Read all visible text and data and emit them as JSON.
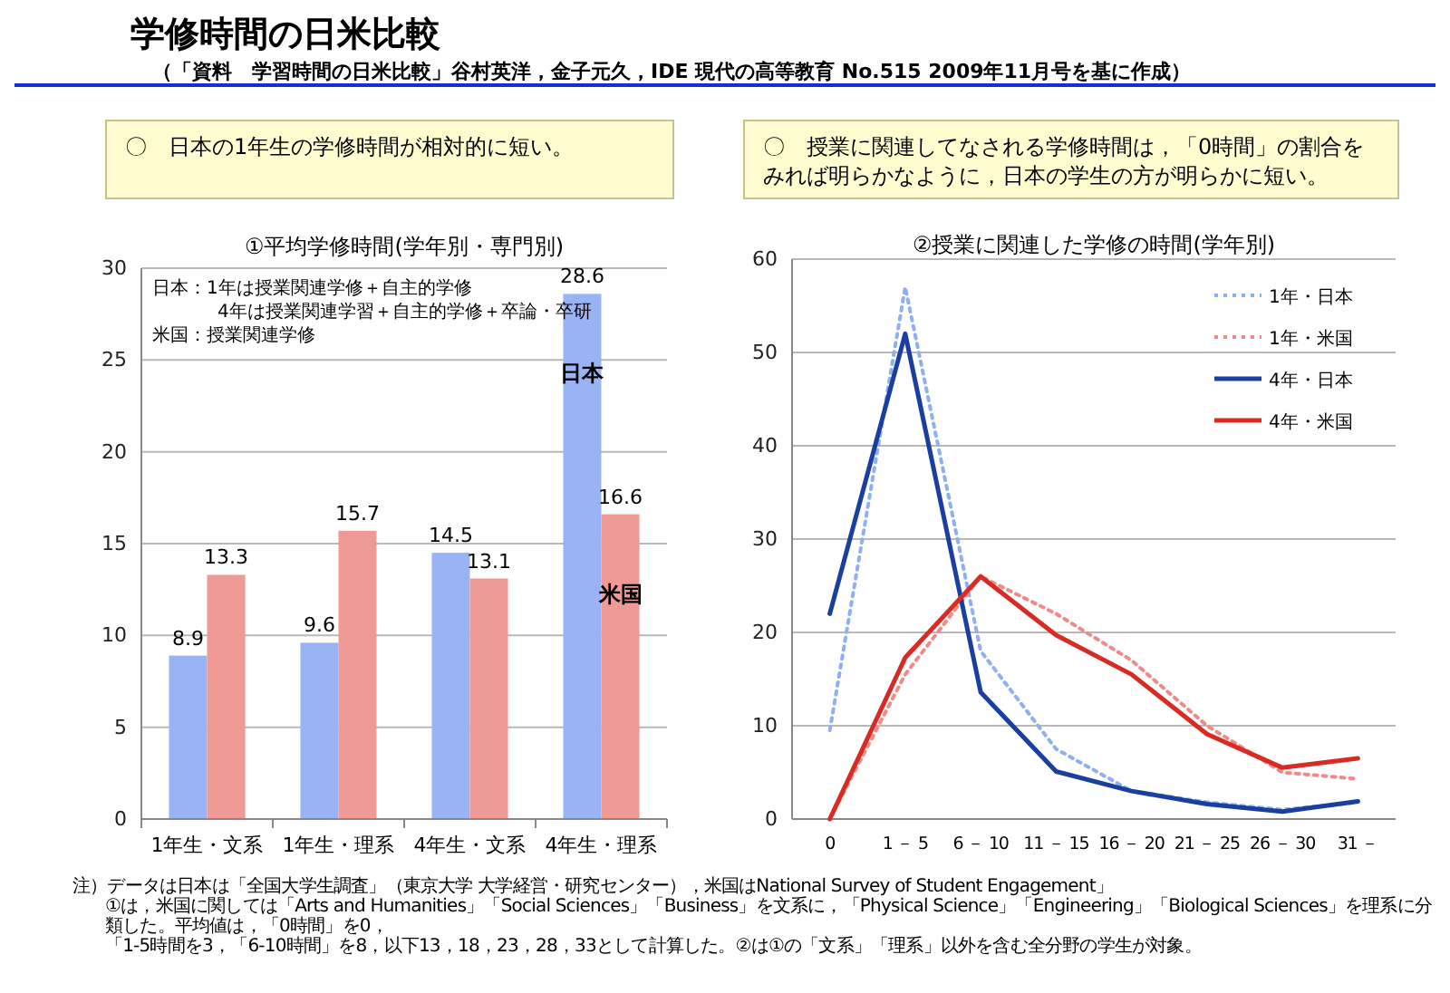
{
  "chart_data": [
    {
      "type": "bar",
      "title": "①平均学修時間(学年別・専門別)",
      "categories": [
        "1年生・文系",
        "1年生・理系",
        "4年生・文系",
        "4年生・理系"
      ],
      "series": [
        {
          "name": "日本",
          "color": "#99b3f5",
          "values": [
            8.9,
            9.6,
            14.5,
            28.6
          ]
        },
        {
          "name": "米国",
          "color": "#f09a96",
          "values": [
            13.3,
            15.7,
            13.1,
            16.6
          ]
        }
      ],
      "ylim": [
        0,
        30
      ],
      "yticks": [
        0,
        5,
        10,
        15,
        20,
        25,
        30
      ],
      "grid": "y",
      "data_labels": true,
      "annotations": [
        "学修時間の日米比較",
        "（「資料　学習時間の日米比較」谷村英洋，金子元久，IDE 現代の高等教育 No.515 2009年11月号を基に作成）",
        "〇　日本の1年生の学修時間が相対的に短い。",
        "日本：1年は授業関連学修＋自主的学修",
        "4年は授業関連学習＋自主的学修＋卒論・卒研",
        "米国：授業関連学修"
      ]
    },
    {
      "type": "line",
      "title": "②授業に関連した学修の時間(学年別)",
      "categories": [
        "0",
        "1 － 5",
        "6 － 10",
        "11 － 15",
        "16 － 20",
        "21 － 25",
        "26 － 30",
        "31 －"
      ],
      "series": [
        {
          "name": "1年・日本",
          "color": "#8fb0f0",
          "line_style": "dotted",
          "values": [
            9.5,
            57,
            18,
            7.5,
            3,
            1.8,
            1,
            1.8
          ]
        },
        {
          "name": "1年・米国",
          "color": "#f08a88",
          "line_style": "dotted",
          "values": [
            0,
            15.5,
            26,
            22,
            17,
            10,
            5,
            4.3
          ]
        },
        {
          "name": "4年・日本",
          "color": "#1a3fa0",
          "line_style": "solid",
          "values": [
            22,
            52,
            13.6,
            5.1,
            3,
            1.6,
            0.8,
            1.9
          ]
        },
        {
          "name": "4年・米国",
          "color": "#d92b24",
          "line_style": "solid",
          "values": [
            0,
            17.3,
            26,
            19.7,
            15.5,
            9.1,
            5.5,
            6.5
          ]
        }
      ],
      "ylim": [
        0,
        60
      ],
      "yticks": [
        0,
        10,
        20,
        30,
        40,
        50,
        60
      ],
      "grid": "y",
      "legend": "top right",
      "annotations": [
        "〇　授業に関連してなされる学修時間は，「0時間」の割合をみれば明らかなように，日本の学生の方が明らかに短い。",
        "注）データは日本は「全国大学生調査」（東京大学 大学経営・研究センター），米国はNational Survey of Student Engagement」",
        "①は，米国に関しては「Arts and Humanities」「Social Sciences」「Business」を文系に，「Physical Science」「Engineering」「Biological Sciences」を理系に分類した。平均値は，「0時間」を0，",
        "「1-5時間を3，「6-10時間」を8，以下13，18，23，28，33として計算した。②は①の「文系」「理系」以外を含む全分野の学生が対象。"
      ]
    }
  ]
}
